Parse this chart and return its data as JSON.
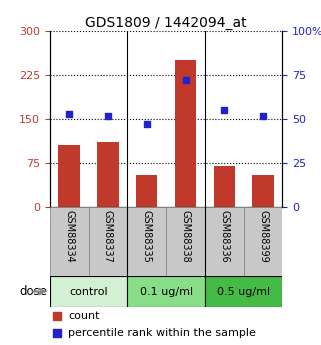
{
  "title": "GDS1809 / 1442094_at",
  "categories": [
    "GSM88334",
    "GSM88337",
    "GSM88335",
    "GSM88338",
    "GSM88336",
    "GSM88399"
  ],
  "bar_values": [
    105,
    110,
    55,
    250,
    70,
    55
  ],
  "dot_values": [
    53,
    52,
    47,
    72,
    55,
    52
  ],
  "left_ylim": [
    0,
    300
  ],
  "right_ylim": [
    0,
    100
  ],
  "left_yticks": [
    0,
    75,
    150,
    225,
    300
  ],
  "right_yticks": [
    0,
    25,
    50,
    75,
    100
  ],
  "left_yticklabels": [
    "0",
    "75",
    "150",
    "225",
    "300"
  ],
  "right_yticklabels": [
    "0",
    "25",
    "50",
    "75",
    "100%"
  ],
  "bar_color": "#c0392b",
  "dot_color": "#2222cc",
  "groups": [
    {
      "label": "control",
      "span": [
        0,
        2
      ],
      "color": "#d4f0d4"
    },
    {
      "label": "0.1 ug/ml",
      "span": [
        2,
        4
      ],
      "color": "#88dd88"
    },
    {
      "label": "0.5 ug/ml",
      "span": [
        4,
        6
      ],
      "color": "#44bb44"
    }
  ],
  "dose_label": "dose",
  "legend_count": "count",
  "legend_pct": "percentile rank within the sample",
  "bar_width": 0.55,
  "tick_bg_color": "#c8c8c8",
  "tick_border_color": "#888888"
}
